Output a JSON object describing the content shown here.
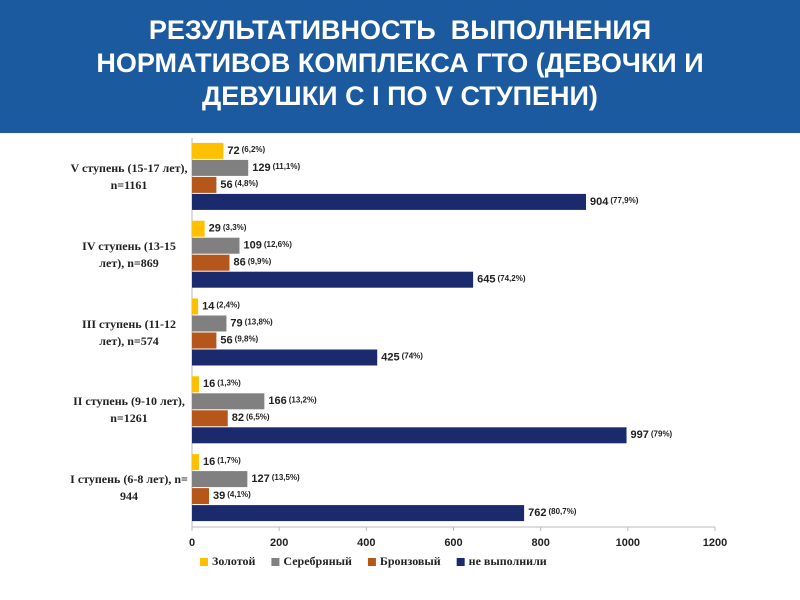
{
  "chart_data": {
    "type": "bar",
    "orientation": "horizontal",
    "title": "РЕЗУЛЬТАТИВНОСТЬ  ВЫПОЛНЕНИЯ НОРМАТИВОВ КОМПЛЕКСА ГТО (ДЕВОЧКИ И ДЕВУШКИ С I ПО V СТУПЕНИ)",
    "categories": [
      "V ступень (15-17 лет), n=1161",
      "IV ступень (13-15 лет), n=869",
      "III ступень (11-12 лет), n=574",
      "II ступень (9-10 лет), n=1261",
      "I ступень (6-8 лет), n= 944"
    ],
    "series": [
      {
        "name": "Золотой",
        "color": "#ffc000",
        "values": [
          72,
          29,
          14,
          16,
          16
        ],
        "percent_labels": [
          "(6,2%)",
          "(3,3%)",
          "(2,4%)",
          "(1,3%)",
          "(1,7%)"
        ]
      },
      {
        "name": "Серебряный",
        "color": "#808080",
        "values": [
          129,
          109,
          79,
          166,
          127
        ],
        "percent_labels": [
          "(11,1%)",
          "(12,6%)",
          "(13,8%)",
          "(13,2%)",
          "(13,5%)"
        ]
      },
      {
        "name": "Бронзовый",
        "color": "#b5561a",
        "values": [
          56,
          86,
          56,
          82,
          39
        ],
        "percent_labels": [
          "(4,8%)",
          "(9,9%)",
          "(9,8%)",
          "(6,5%)",
          "(4,1%)"
        ]
      },
      {
        "name": "не выполнили",
        "color": "#1a2a6c",
        "values": [
          904,
          645,
          425,
          997,
          762
        ],
        "percent_labels": [
          "(77,9%)",
          "(74,2%)",
          "(74%)",
          "(79%)",
          "(80,7%)"
        ]
      }
    ],
    "xlim": [
      0,
      1200
    ],
    "xticks": [
      0,
      200,
      400,
      600,
      800,
      1000,
      1200
    ],
    "legend": "bottom"
  }
}
